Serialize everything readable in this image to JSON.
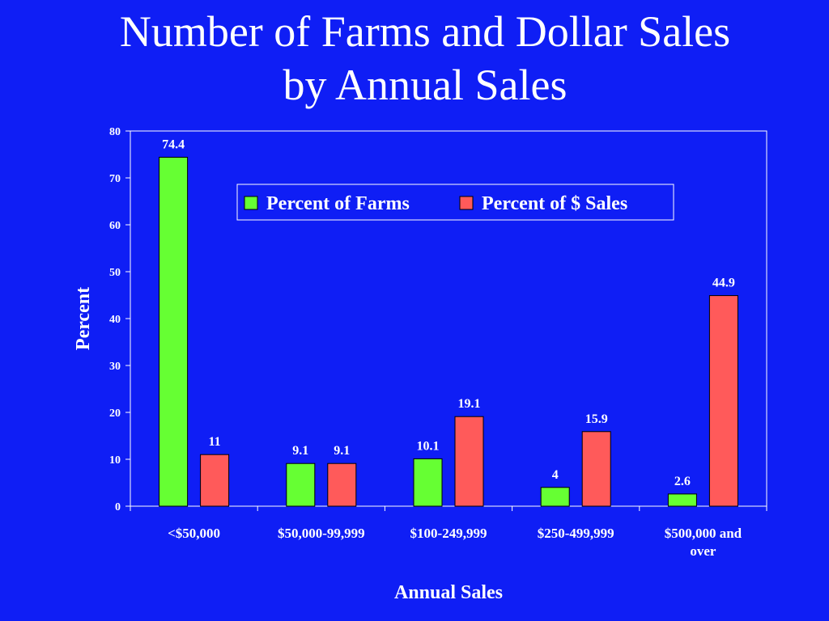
{
  "slide": {
    "title_line1": "Number of Farms and Dollar Sales",
    "title_line2": "by Annual Sales"
  },
  "colors": {
    "background": "#0f1ef5",
    "farms": "#66ff33",
    "sales": "#ff5a5a",
    "axis": "#ffffff"
  },
  "chart_data": {
    "type": "bar",
    "xlabel": "Annual Sales",
    "ylabel": "Percent",
    "ylim": [
      0,
      80
    ],
    "yticks": [
      0,
      10,
      20,
      30,
      40,
      50,
      60,
      70,
      80
    ],
    "grid": false,
    "legend_position": "top-right",
    "categories": [
      [
        "<$50,000"
      ],
      [
        "$50,000-99,999"
      ],
      [
        "$100-249,999"
      ],
      [
        "$250-499,999"
      ],
      [
        "$500,000 and",
        "over"
      ]
    ],
    "series": [
      {
        "name": "Percent of Farms",
        "values": [
          74.4,
          9.1,
          10.1,
          4,
          2.6
        ],
        "labels": [
          "74.4",
          "9.1",
          "10.1",
          "4",
          "2.6"
        ]
      },
      {
        "name": "Percent of $ Sales",
        "values": [
          11,
          9.1,
          19.1,
          15.9,
          44.9
        ],
        "labels": [
          "11",
          "9.1",
          "19.1",
          "15.9",
          "44.9"
        ]
      }
    ]
  }
}
